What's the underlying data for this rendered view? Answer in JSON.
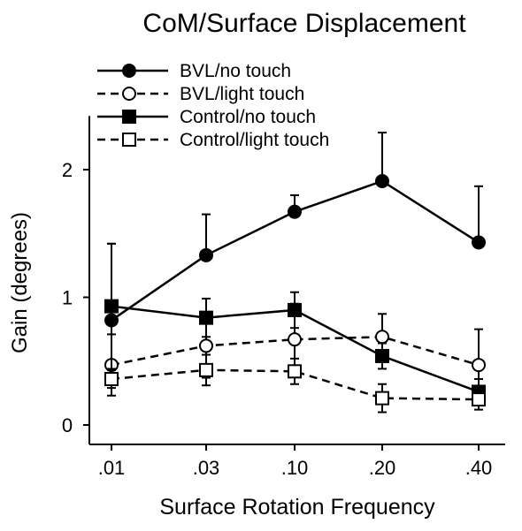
{
  "chart_data": {
    "type": "line",
    "title": "CoM/Surface Displacement",
    "xlabel": "Surface Rotation Frequency",
    "ylabel": "Gain (degrees)",
    "categories": [
      ".01",
      ".03",
      ".10",
      ".20",
      ".40"
    ],
    "yticks": [
      "0",
      "1",
      "2"
    ],
    "ylim": [
      -0.08,
      2.42
    ],
    "legend_position": "top-left",
    "series": [
      {
        "name": "BVL/no touch",
        "marker": "circle",
        "filled": true,
        "dashed": false,
        "values": [
          0.82,
          1.33,
          1.67,
          1.91,
          1.43
        ],
        "error": [
          0.6,
          0.32,
          0.13,
          0.38,
          0.44
        ]
      },
      {
        "name": "BVL/light touch",
        "marker": "circle",
        "filled": false,
        "dashed": true,
        "values": [
          0.47,
          0.62,
          0.67,
          0.69,
          0.47
        ],
        "error": [
          0.24,
          0.25,
          0.28,
          0.18,
          0.28
        ]
      },
      {
        "name": "Control/no touch",
        "marker": "square",
        "filled": true,
        "dashed": false,
        "values": [
          0.93,
          0.84,
          0.9,
          0.54,
          0.26
        ],
        "error": [
          0.49,
          0.15,
          0.14,
          0.1,
          0.1
        ]
      },
      {
        "name": "Control/light touch",
        "marker": "square",
        "filled": false,
        "dashed": true,
        "values": [
          0.36,
          0.43,
          0.42,
          0.21,
          0.2
        ],
        "error": [
          0.07,
          0.12,
          0.1,
          0.11,
          0.08
        ]
      }
    ]
  }
}
